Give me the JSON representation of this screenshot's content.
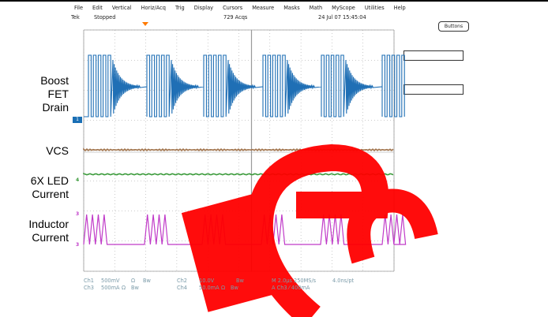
{
  "menu": [
    "File",
    "Edit",
    "Vertical",
    "Horiz/Acq",
    "Trig",
    "Display",
    "Cursors",
    "Measure",
    "Masks",
    "Math",
    "MyScope",
    "Utilities",
    "Help"
  ],
  "status": {
    "brand": "Tek",
    "run_state": "Stopped",
    "acqs": "729 Acqs",
    "datetime": "24 Jul 07 15:45:04"
  },
  "buttons_label": "Buttons",
  "labels": {
    "boost": [
      "Boost",
      "FET",
      "Drain"
    ],
    "vcs": "VCS",
    "led": [
      "6X LED",
      "Current"
    ],
    "inductor": [
      "Inductor",
      "Current"
    ]
  },
  "channel_markers": {
    "ch1": "1",
    "ch2": "2",
    "ch3": "3",
    "ch4": "4"
  },
  "readout": {
    "row1": [
      "Ch1",
      "500mV",
      "Ω",
      "Bw",
      "Ch2",
      "10.0V",
      "Bw",
      "M 2.0µs 250MS/s",
      "4.0ns/pt"
    ],
    "row2": [
      "Ch3",
      "500mA",
      "Ω",
      "Bw",
      "Ch4",
      "50.0mA",
      "Ω",
      "Bw",
      "A Ch3 ⁄ 400mA"
    ]
  },
  "colors": {
    "ch1": "#1f6fb5",
    "ch2": "#a0724a",
    "ch3": "#c03ac8",
    "ch4": "#3a9a3a",
    "label_boost": "#1a3fd0",
    "label_vcs": "#8a5a2a",
    "label_led": "#2e8b2e",
    "label_inductor": "#e020e0",
    "grid": "#9a9a9a",
    "watermark": "#ff0000"
  }
}
